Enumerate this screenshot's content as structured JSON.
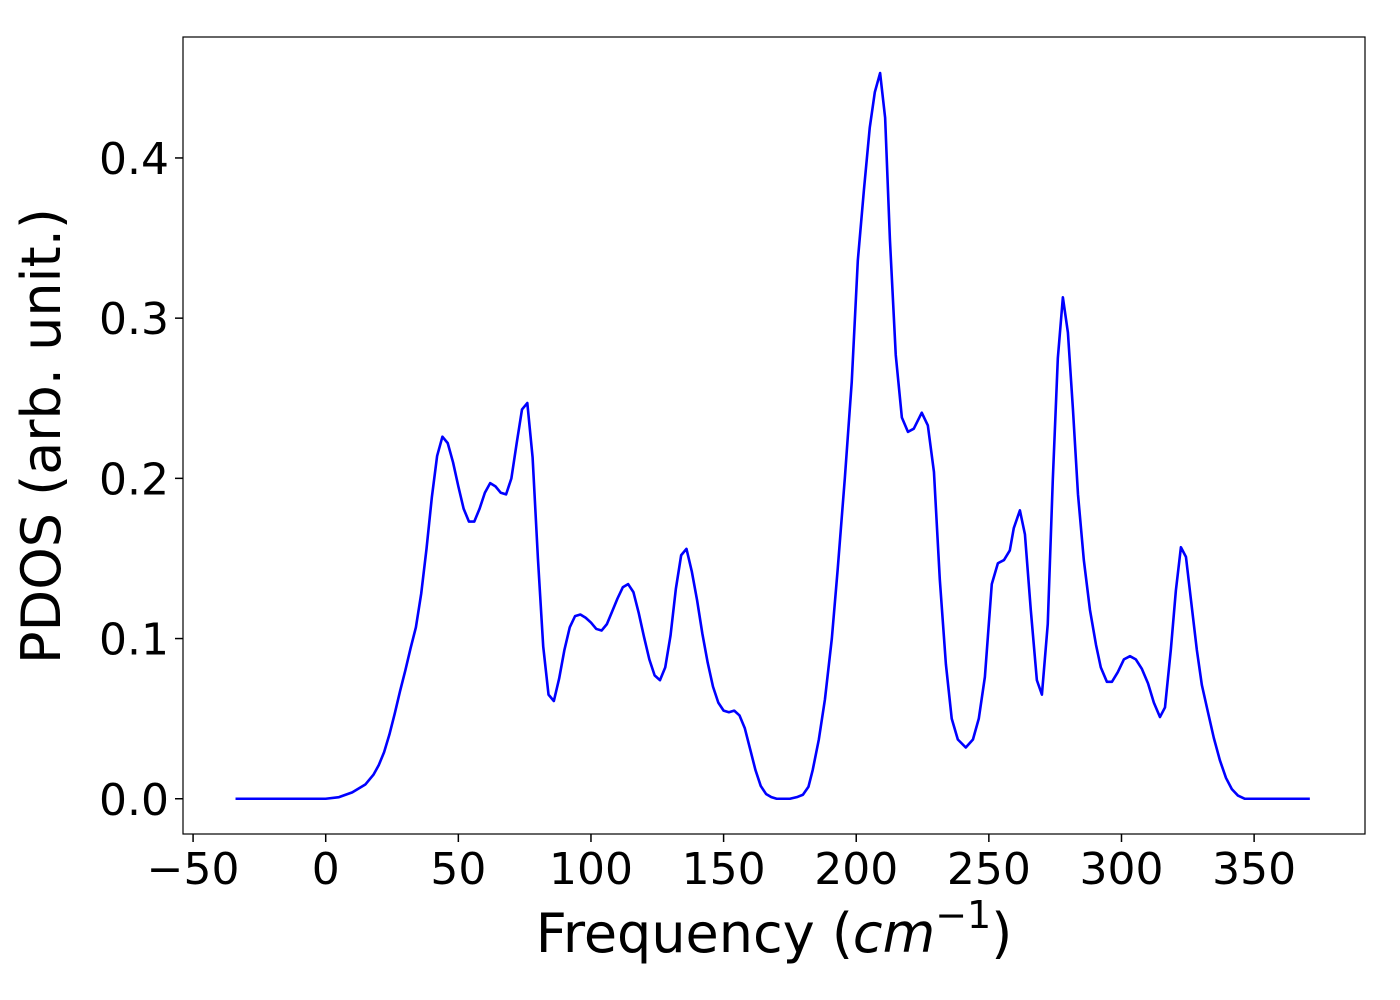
{
  "chart_data": {
    "type": "line",
    "xlabel": [
      "Frequency (",
      "cm",
      "−1",
      ")"
    ],
    "ylabel": "PDOS (arb. unit.)",
    "color": "#0000ff",
    "xlim": [
      -53.8,
      391.8
    ],
    "ylim": [
      -0.022,
      0.4755
    ],
    "xticks": [
      {
        "value": -50,
        "label": "−50"
      },
      0,
      50,
      100,
      150,
      200,
      250,
      300,
      350
    ],
    "yticks": [
      {
        "value": 0,
        "label": "0.0"
      },
      0.1,
      0.2,
      0.3,
      0.4
    ],
    "x": [
      -34,
      -10,
      0,
      5,
      10,
      15,
      18,
      20,
      22,
      24,
      26,
      28,
      30,
      32,
      34,
      36,
      38,
      40,
      42,
      44,
      46,
      48,
      50,
      52,
      54,
      56,
      58,
      60,
      62,
      64,
      66,
      68,
      70,
      72,
      74,
      76,
      78,
      80,
      82,
      84,
      86,
      88,
      90,
      92,
      94,
      96,
      98,
      100,
      102,
      104,
      106,
      108,
      110,
      112,
      114,
      116,
      118,
      120,
      122,
      124,
      126,
      128,
      130,
      132,
      134,
      136,
      138,
      140,
      142,
      144,
      146,
      148,
      150,
      152,
      154,
      156,
      158,
      160,
      162,
      164,
      166,
      168,
      170,
      175,
      177.6,
      179.9,
      182,
      183.6,
      185.9,
      188.2,
      190.8,
      193,
      195.7,
      198.3,
      200.6,
      202.9,
      205.1,
      207,
      209,
      210.9,
      212.7,
      214.9,
      217.2,
      219.5,
      221.7,
      224.7,
      227,
      229.3,
      231.5,
      233.8,
      236,
      238.3,
      241.3,
      244,
      246.2,
      248.5,
      251.1,
      253.4,
      255.7,
      257.9,
      259.4,
      261.7,
      263.6,
      265.8,
      268.1,
      270,
      272.2,
      274.1,
      276,
      277.9,
      279.8,
      281.7,
      283.6,
      285.8,
      288.1,
      290.4,
      292.2,
      294.5,
      296.4,
      298.6,
      300.9,
      303.2,
      305.4,
      307.7,
      310,
      312.2,
      314.5,
      316.4,
      318.6,
      320.5,
      322.4,
      324.3,
      326.2,
      328.4,
      330.3,
      332.6,
      334.8,
      337.1,
      339.4,
      341.6,
      343.9,
      346.5,
      371
    ],
    "values": [
      0,
      0,
      0,
      0.001,
      0.004,
      0.009,
      0.015,
      0.021,
      0.029,
      0.04,
      0.053,
      0.067,
      0.08,
      0.094,
      0.107,
      0.128,
      0.156,
      0.188,
      0.214,
      0.226,
      0.222,
      0.21,
      0.195,
      0.181,
      0.173,
      0.173,
      0.181,
      0.191,
      0.197,
      0.195,
      0.191,
      0.19,
      0.2,
      0.222,
      0.243,
      0.247,
      0.213,
      0.15,
      0.095,
      0.065,
      0.061,
      0.075,
      0.093,
      0.107,
      0.114,
      0.115,
      0.113,
      0.11,
      0.106,
      0.105,
      0.109,
      0.117,
      0.125,
      0.132,
      0.134,
      0.129,
      0.116,
      0.101,
      0.087,
      0.077,
      0.074,
      0.082,
      0.102,
      0.131,
      0.152,
      0.156,
      0.142,
      0.124,
      0.103,
      0.085,
      0.07,
      0.06,
      0.055,
      0.054,
      0.055,
      0.052,
      0.044,
      0.031,
      0.018,
      0.008,
      0.003,
      0.001,
      0,
      0,
      0.001,
      0.0025,
      0.0075,
      0.018,
      0.037,
      0.062,
      0.1,
      0.143,
      0.2,
      0.26,
      0.336,
      0.38,
      0.419,
      0.441,
      0.453,
      0.425,
      0.349,
      0.277,
      0.238,
      0.229,
      0.231,
      0.241,
      0.233,
      0.204,
      0.137,
      0.084,
      0.05,
      0.037,
      0.032,
      0.037,
      0.05,
      0.076,
      0.134,
      0.147,
      0.149,
      0.155,
      0.169,
      0.18,
      0.165,
      0.118,
      0.074,
      0.065,
      0.109,
      0.199,
      0.275,
      0.313,
      0.291,
      0.243,
      0.19,
      0.149,
      0.118,
      0.096,
      0.082,
      0.073,
      0.073,
      0.079,
      0.087,
      0.089,
      0.087,
      0.081,
      0.072,
      0.06,
      0.051,
      0.057,
      0.093,
      0.13,
      0.157,
      0.151,
      0.124,
      0.093,
      0.071,
      0.054,
      0.038,
      0.024,
      0.013,
      0.006,
      0.002,
      0,
      0
    ]
  }
}
